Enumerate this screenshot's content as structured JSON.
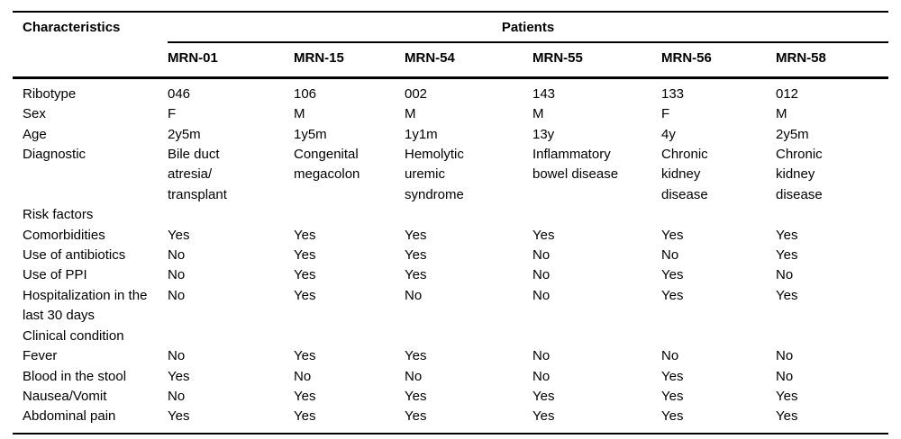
{
  "table": {
    "col1_header": "Characteristics",
    "group_header": "Patients",
    "columns": [
      "MRN-01",
      "MRN-15",
      "MRN-54",
      "MRN-55",
      "MRN-56",
      "MRN-58"
    ],
    "rows": [
      {
        "label": "Ribotype",
        "values": [
          "046",
          "106",
          "002",
          "143",
          "133",
          "012"
        ]
      },
      {
        "label": "Sex",
        "values": [
          "F",
          "M",
          "M",
          "M",
          "F",
          "M"
        ]
      },
      {
        "label": "Age",
        "values": [
          "2y5m",
          "1y5m",
          "1y1m",
          "13y",
          "4y",
          "2y5m"
        ]
      },
      {
        "label": "Diagnostic",
        "values": [
          "Bile duct atresia/ transplant",
          "Congenital megacolon",
          "Hemolytic uremic syndrome",
          "Inflammatory bowel disease",
          "Chronic kidney disease",
          "Chronic kidney disease"
        ]
      },
      {
        "label": "Risk factors",
        "section": true,
        "values": []
      },
      {
        "label": "Comorbidities",
        "values": [
          "Yes",
          "Yes",
          "Yes",
          "Yes",
          "Yes",
          "Yes"
        ]
      },
      {
        "label": "Use of antibiotics",
        "values": [
          "No",
          "Yes",
          "Yes",
          "No",
          "No",
          "Yes"
        ]
      },
      {
        "label": "Use of PPI",
        "values": [
          "No",
          "Yes",
          "Yes",
          "No",
          "Yes",
          "No"
        ]
      },
      {
        "label": "Hospitalization in the last 30 days",
        "values": [
          "No",
          "Yes",
          "No",
          "No",
          "Yes",
          "Yes"
        ]
      },
      {
        "label": "Clinical condition",
        "section": true,
        "values": []
      },
      {
        "label": "Fever",
        "values": [
          "No",
          "Yes",
          "Yes",
          "No",
          "No",
          "No"
        ]
      },
      {
        "label": "Blood in the stool",
        "values": [
          "Yes",
          "No",
          "No",
          "No",
          "Yes",
          "No"
        ]
      },
      {
        "label": "Nausea/Vomit",
        "values": [
          "No",
          "Yes",
          "Yes",
          "Yes",
          "Yes",
          "Yes"
        ]
      },
      {
        "label": "Abdominal pain",
        "values": [
          "Yes",
          "Yes",
          "Yes",
          "Yes",
          "Yes",
          "Yes"
        ]
      }
    ]
  }
}
